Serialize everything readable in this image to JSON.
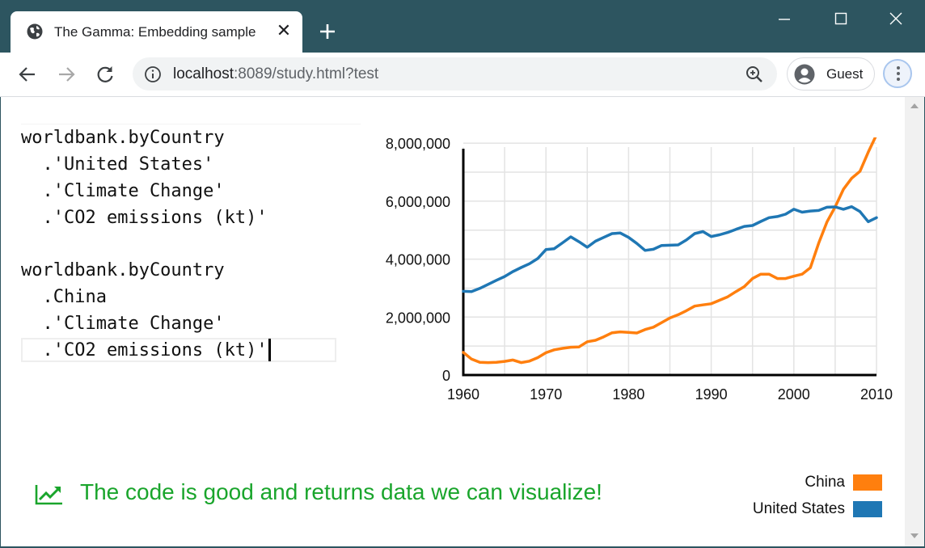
{
  "browser": {
    "tab_title": "The Gamma: Embedding sample",
    "url_host": "localhost",
    "url_rest": ":8089/study.html?test",
    "profile_label": "Guest",
    "icons": [
      "globe-icon",
      "close-icon",
      "plus-icon",
      "minimize-icon",
      "maximize-icon",
      "window-close-icon",
      "back-arrow-icon",
      "forward-arrow-icon",
      "reload-icon",
      "info-icon",
      "zoom-icon",
      "avatar-icon",
      "menu-icon"
    ]
  },
  "editor": {
    "lines": [
      "worldbank.byCountry",
      "  .'United States'",
      "  .'Climate Change'",
      "  .'CO2 emissions (kt)'",
      "",
      "worldbank.byCountry",
      "  .China",
      "  .'Climate Change'",
      "  .'CO2 emissions (kt)'"
    ]
  },
  "status": {
    "message": "The code is good and returns data we can visualize!",
    "color": "#1aa52c",
    "icon": "trending-up-icon"
  },
  "chart_data": {
    "type": "line",
    "title": "",
    "xlabel": "",
    "ylabel": "",
    "xlim": [
      1960,
      2010
    ],
    "ylim": [
      0,
      8200000
    ],
    "x_ticks": [
      1960,
      1970,
      1980,
      1990,
      2000,
      2010
    ],
    "y_ticks": [
      0,
      2000000,
      4000000,
      6000000,
      8000000
    ],
    "x_tick_labels": [
      "1960",
      "1970",
      "1980",
      "1990",
      "2000",
      "2010"
    ],
    "y_tick_labels": [
      "0",
      "2,000,000",
      "4,000,000",
      "6,000,000",
      "8,000,000"
    ],
    "grid": true,
    "legend_position": "bottom-right",
    "series": [
      {
        "name": "China",
        "color": "#ff7f0e",
        "x": [
          1960,
          1961,
          1962,
          1963,
          1964,
          1965,
          1966,
          1967,
          1968,
          1969,
          1970,
          1971,
          1972,
          1973,
          1974,
          1975,
          1976,
          1977,
          1978,
          1979,
          1980,
          1981,
          1982,
          1983,
          1984,
          1985,
          1986,
          1987,
          1988,
          1989,
          1990,
          1991,
          1992,
          1993,
          1994,
          1995,
          1996,
          1997,
          1998,
          1999,
          2000,
          2001,
          2002,
          2003,
          2004,
          2005,
          2006,
          2007,
          2008,
          2009,
          2010
        ],
        "y": [
          780000,
          550000,
          440000,
          430000,
          440000,
          470000,
          520000,
          430000,
          480000,
          600000,
          770000,
          870000,
          920000,
          960000,
          970000,
          1150000,
          1200000,
          1320000,
          1460000,
          1490000,
          1470000,
          1450000,
          1570000,
          1650000,
          1810000,
          1970000,
          2080000,
          2220000,
          2380000,
          2420000,
          2460000,
          2580000,
          2700000,
          2880000,
          3050000,
          3330000,
          3480000,
          3480000,
          3330000,
          3330000,
          3410000,
          3480000,
          3700000,
          4550000,
          5280000,
          5800000,
          6410000,
          6790000,
          7030000,
          7690000,
          8290000
        ]
      },
      {
        "name": "United States",
        "color": "#1f77b4",
        "x": [
          1960,
          1961,
          1962,
          1963,
          1964,
          1965,
          1966,
          1967,
          1968,
          1969,
          1970,
          1971,
          1972,
          1973,
          1974,
          1975,
          1976,
          1977,
          1978,
          1979,
          1980,
          1981,
          1982,
          1983,
          1984,
          1985,
          1986,
          1987,
          1988,
          1989,
          1990,
          1991,
          1992,
          1993,
          1994,
          1995,
          1996,
          1997,
          1998,
          1999,
          2000,
          2001,
          2002,
          2003,
          2004,
          2005,
          2006,
          2007,
          2008,
          2009,
          2010
        ],
        "y": [
          2890000,
          2880000,
          2990000,
          3130000,
          3270000,
          3400000,
          3570000,
          3710000,
          3840000,
          4020000,
          4330000,
          4360000,
          4560000,
          4770000,
          4600000,
          4410000,
          4620000,
          4750000,
          4880000,
          4900000,
          4750000,
          4540000,
          4300000,
          4340000,
          4470000,
          4480000,
          4490000,
          4660000,
          4880000,
          4950000,
          4780000,
          4840000,
          4920000,
          5030000,
          5130000,
          5160000,
          5300000,
          5430000,
          5470000,
          5550000,
          5720000,
          5620000,
          5660000,
          5680000,
          5790000,
          5800000,
          5720000,
          5810000,
          5640000,
          5290000,
          5430000
        ]
      }
    ]
  }
}
